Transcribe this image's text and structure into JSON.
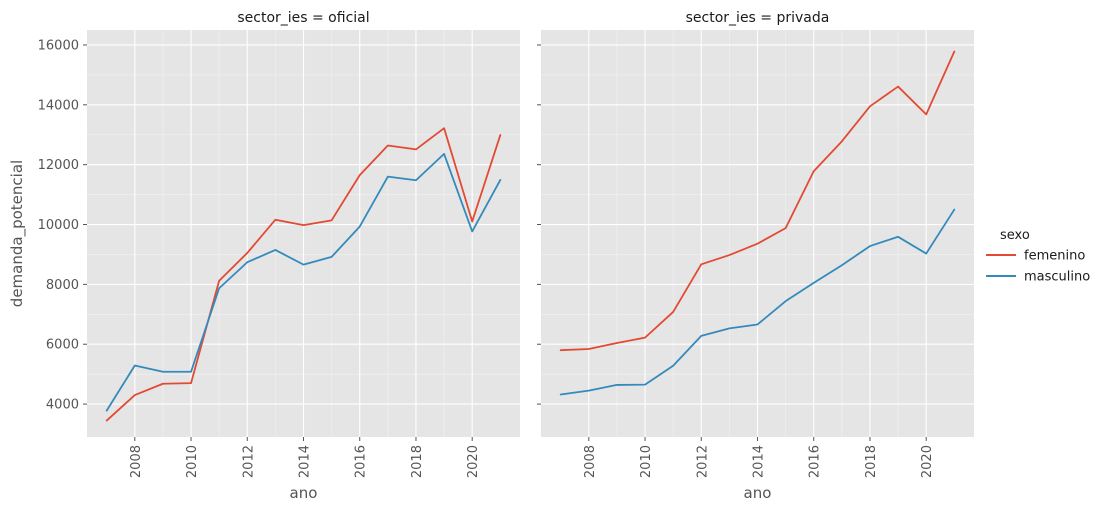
{
  "chart_data": {
    "type": "line",
    "xlabel": "ano",
    "ylabel": "demanda_potencial",
    "xlim": [
      2006.3,
      2021.7
    ],
    "ylim": [
      2900,
      16500
    ],
    "x_ticks": [
      2008,
      2010,
      2012,
      2014,
      2016,
      2018,
      2020
    ],
    "y_ticks": [
      4000,
      6000,
      8000,
      10000,
      12000,
      14000,
      16000
    ],
    "grid": true,
    "legend": {
      "title": "sexo",
      "position": "right",
      "entries": [
        {
          "name": "femenino",
          "color": "#e24a33"
        },
        {
          "name": "masculino",
          "color": "#348abd"
        }
      ]
    },
    "panels": [
      {
        "title": "sector_ies = oficial",
        "x": [
          2007,
          2008,
          2009,
          2010,
          2011,
          2012,
          2013,
          2014,
          2015,
          2016,
          2017,
          2018,
          2019,
          2020,
          2021
        ],
        "series": [
          {
            "name": "femenino",
            "color": "#e24a33",
            "values": [
              3450,
              4300,
              4680,
              4700,
              8120,
              9050,
              10160,
              9980,
              10140,
              11650,
              12640,
              12510,
              13220,
              10100,
              12990
            ]
          },
          {
            "name": "masculino",
            "color": "#348abd",
            "values": [
              3780,
              5290,
              5080,
              5080,
              7870,
              8740,
              9150,
              8660,
              8920,
              9930,
              11600,
              11480,
              12360,
              9770,
              11490
            ]
          }
        ]
      },
      {
        "title": "sector_ies = privada",
        "x": [
          2007,
          2008,
          2009,
          2010,
          2011,
          2012,
          2013,
          2014,
          2015,
          2016,
          2017,
          2018,
          2019,
          2020,
          2021
        ],
        "series": [
          {
            "name": "femenino",
            "color": "#e24a33",
            "values": [
              5800,
              5840,
              6040,
              6220,
              7080,
              8670,
              8980,
              9360,
              9880,
              11780,
              12780,
              13950,
              14610,
              13680,
              15780
            ]
          },
          {
            "name": "masculino",
            "color": "#348abd",
            "values": [
              4320,
              4450,
              4640,
              4650,
              5280,
              6280,
              6530,
              6660,
              7440,
              8050,
              8640,
              9280,
              9590,
              9030,
              10500
            ]
          }
        ]
      }
    ]
  }
}
